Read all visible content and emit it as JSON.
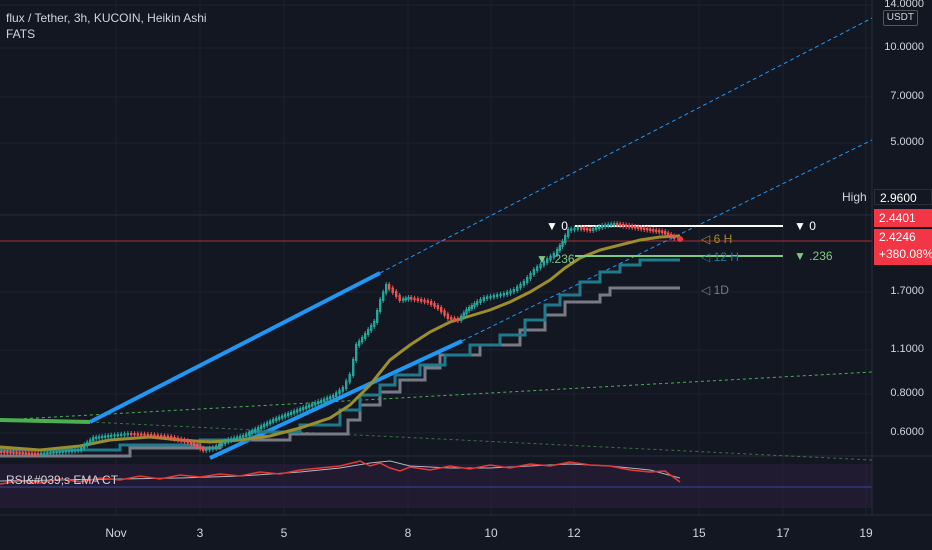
{
  "symbol_title": "flux / Tether, 3h, KUCOIN, Heikin Ashi",
  "indicator_1": "FATS",
  "indicator_rsi": "RSI&#039;s EMA CT",
  "currency_unit": "USDT",
  "price_axis": [
    "14.0000",
    "10.0000",
    "7.0000",
    "5.0000",
    "2.9600",
    "1.7000",
    "1.1000",
    "0.8000",
    "0.6000"
  ],
  "time_axis": [
    "Nov",
    "3",
    "5",
    "8",
    "10",
    "12",
    "15",
    "17",
    "19"
  ],
  "high_label": "High",
  "high_value": "2.9600",
  "last_close_value": "2.4401",
  "current_price": "2.4246",
  "change_percent": "+380.08%",
  "fib_left_0": "▼ 0",
  "fib_left_236": "▼ .236",
  "fib_right_0": "▼ 0",
  "fib_right_236": "▼ .236",
  "tf_6h": "◁ 6 H",
  "tf_12h": "◁ 12 H",
  "tf_1d": "◁ 1D",
  "colors": {
    "background": "#131722",
    "up_candle": "#26a69a",
    "down_candle": "#ef5350",
    "trend_blue": "#2196f3",
    "ma_olive": "#9c8f2b",
    "ma_teal": "#1f7a8c",
    "ma_gray": "#787b86",
    "rsi_red": "#e53935",
    "rsi_gray": "#b2b5be",
    "fib_green": "#81c784"
  }
}
